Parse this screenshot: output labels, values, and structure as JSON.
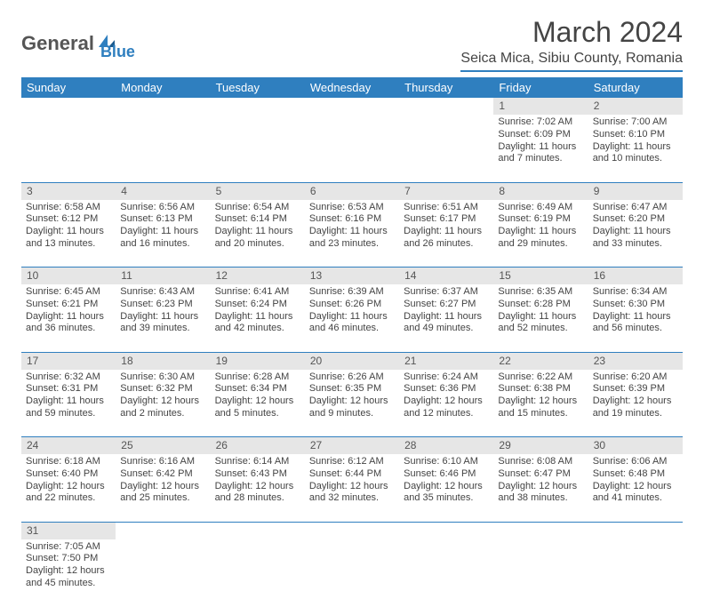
{
  "logo": {
    "text_a": "General",
    "text_b": "Blue"
  },
  "title": "March 2024",
  "location": "Seica Mica, Sibiu County, Romania",
  "colors": {
    "header_bg": "#2f7fbf",
    "header_text": "#ffffff",
    "daynum_bg": "#e6e6e6",
    "border": "#2f7fbf",
    "body_text": "#444444"
  },
  "day_headers": [
    "Sunday",
    "Monday",
    "Tuesday",
    "Wednesday",
    "Thursday",
    "Friday",
    "Saturday"
  ],
  "weeks": [
    {
      "nums": [
        "",
        "",
        "",
        "",
        "",
        "1",
        "2"
      ],
      "cells": [
        null,
        null,
        null,
        null,
        null,
        {
          "sunrise": "Sunrise: 7:02 AM",
          "sunset": "Sunset: 6:09 PM",
          "dl1": "Daylight: 11 hours",
          "dl2": "and 7 minutes."
        },
        {
          "sunrise": "Sunrise: 7:00 AM",
          "sunset": "Sunset: 6:10 PM",
          "dl1": "Daylight: 11 hours",
          "dl2": "and 10 minutes."
        }
      ]
    },
    {
      "nums": [
        "3",
        "4",
        "5",
        "6",
        "7",
        "8",
        "9"
      ],
      "cells": [
        {
          "sunrise": "Sunrise: 6:58 AM",
          "sunset": "Sunset: 6:12 PM",
          "dl1": "Daylight: 11 hours",
          "dl2": "and 13 minutes."
        },
        {
          "sunrise": "Sunrise: 6:56 AM",
          "sunset": "Sunset: 6:13 PM",
          "dl1": "Daylight: 11 hours",
          "dl2": "and 16 minutes."
        },
        {
          "sunrise": "Sunrise: 6:54 AM",
          "sunset": "Sunset: 6:14 PM",
          "dl1": "Daylight: 11 hours",
          "dl2": "and 20 minutes."
        },
        {
          "sunrise": "Sunrise: 6:53 AM",
          "sunset": "Sunset: 6:16 PM",
          "dl1": "Daylight: 11 hours",
          "dl2": "and 23 minutes."
        },
        {
          "sunrise": "Sunrise: 6:51 AM",
          "sunset": "Sunset: 6:17 PM",
          "dl1": "Daylight: 11 hours",
          "dl2": "and 26 minutes."
        },
        {
          "sunrise": "Sunrise: 6:49 AM",
          "sunset": "Sunset: 6:19 PM",
          "dl1": "Daylight: 11 hours",
          "dl2": "and 29 minutes."
        },
        {
          "sunrise": "Sunrise: 6:47 AM",
          "sunset": "Sunset: 6:20 PM",
          "dl1": "Daylight: 11 hours",
          "dl2": "and 33 minutes."
        }
      ]
    },
    {
      "nums": [
        "10",
        "11",
        "12",
        "13",
        "14",
        "15",
        "16"
      ],
      "cells": [
        {
          "sunrise": "Sunrise: 6:45 AM",
          "sunset": "Sunset: 6:21 PM",
          "dl1": "Daylight: 11 hours",
          "dl2": "and 36 minutes."
        },
        {
          "sunrise": "Sunrise: 6:43 AM",
          "sunset": "Sunset: 6:23 PM",
          "dl1": "Daylight: 11 hours",
          "dl2": "and 39 minutes."
        },
        {
          "sunrise": "Sunrise: 6:41 AM",
          "sunset": "Sunset: 6:24 PM",
          "dl1": "Daylight: 11 hours",
          "dl2": "and 42 minutes."
        },
        {
          "sunrise": "Sunrise: 6:39 AM",
          "sunset": "Sunset: 6:26 PM",
          "dl1": "Daylight: 11 hours",
          "dl2": "and 46 minutes."
        },
        {
          "sunrise": "Sunrise: 6:37 AM",
          "sunset": "Sunset: 6:27 PM",
          "dl1": "Daylight: 11 hours",
          "dl2": "and 49 minutes."
        },
        {
          "sunrise": "Sunrise: 6:35 AM",
          "sunset": "Sunset: 6:28 PM",
          "dl1": "Daylight: 11 hours",
          "dl2": "and 52 minutes."
        },
        {
          "sunrise": "Sunrise: 6:34 AM",
          "sunset": "Sunset: 6:30 PM",
          "dl1": "Daylight: 11 hours",
          "dl2": "and 56 minutes."
        }
      ]
    },
    {
      "nums": [
        "17",
        "18",
        "19",
        "20",
        "21",
        "22",
        "23"
      ],
      "cells": [
        {
          "sunrise": "Sunrise: 6:32 AM",
          "sunset": "Sunset: 6:31 PM",
          "dl1": "Daylight: 11 hours",
          "dl2": "and 59 minutes."
        },
        {
          "sunrise": "Sunrise: 6:30 AM",
          "sunset": "Sunset: 6:32 PM",
          "dl1": "Daylight: 12 hours",
          "dl2": "and 2 minutes."
        },
        {
          "sunrise": "Sunrise: 6:28 AM",
          "sunset": "Sunset: 6:34 PM",
          "dl1": "Daylight: 12 hours",
          "dl2": "and 5 minutes."
        },
        {
          "sunrise": "Sunrise: 6:26 AM",
          "sunset": "Sunset: 6:35 PM",
          "dl1": "Daylight: 12 hours",
          "dl2": "and 9 minutes."
        },
        {
          "sunrise": "Sunrise: 6:24 AM",
          "sunset": "Sunset: 6:36 PM",
          "dl1": "Daylight: 12 hours",
          "dl2": "and 12 minutes."
        },
        {
          "sunrise": "Sunrise: 6:22 AM",
          "sunset": "Sunset: 6:38 PM",
          "dl1": "Daylight: 12 hours",
          "dl2": "and 15 minutes."
        },
        {
          "sunrise": "Sunrise: 6:20 AM",
          "sunset": "Sunset: 6:39 PM",
          "dl1": "Daylight: 12 hours",
          "dl2": "and 19 minutes."
        }
      ]
    },
    {
      "nums": [
        "24",
        "25",
        "26",
        "27",
        "28",
        "29",
        "30"
      ],
      "cells": [
        {
          "sunrise": "Sunrise: 6:18 AM",
          "sunset": "Sunset: 6:40 PM",
          "dl1": "Daylight: 12 hours",
          "dl2": "and 22 minutes."
        },
        {
          "sunrise": "Sunrise: 6:16 AM",
          "sunset": "Sunset: 6:42 PM",
          "dl1": "Daylight: 12 hours",
          "dl2": "and 25 minutes."
        },
        {
          "sunrise": "Sunrise: 6:14 AM",
          "sunset": "Sunset: 6:43 PM",
          "dl1": "Daylight: 12 hours",
          "dl2": "and 28 minutes."
        },
        {
          "sunrise": "Sunrise: 6:12 AM",
          "sunset": "Sunset: 6:44 PM",
          "dl1": "Daylight: 12 hours",
          "dl2": "and 32 minutes."
        },
        {
          "sunrise": "Sunrise: 6:10 AM",
          "sunset": "Sunset: 6:46 PM",
          "dl1": "Daylight: 12 hours",
          "dl2": "and 35 minutes."
        },
        {
          "sunrise": "Sunrise: 6:08 AM",
          "sunset": "Sunset: 6:47 PM",
          "dl1": "Daylight: 12 hours",
          "dl2": "and 38 minutes."
        },
        {
          "sunrise": "Sunrise: 6:06 AM",
          "sunset": "Sunset: 6:48 PM",
          "dl1": "Daylight: 12 hours",
          "dl2": "and 41 minutes."
        }
      ]
    },
    {
      "nums": [
        "31",
        "",
        "",
        "",
        "",
        "",
        ""
      ],
      "cells": [
        {
          "sunrise": "Sunrise: 7:05 AM",
          "sunset": "Sunset: 7:50 PM",
          "dl1": "Daylight: 12 hours",
          "dl2": "and 45 minutes."
        },
        null,
        null,
        null,
        null,
        null,
        null
      ]
    }
  ]
}
